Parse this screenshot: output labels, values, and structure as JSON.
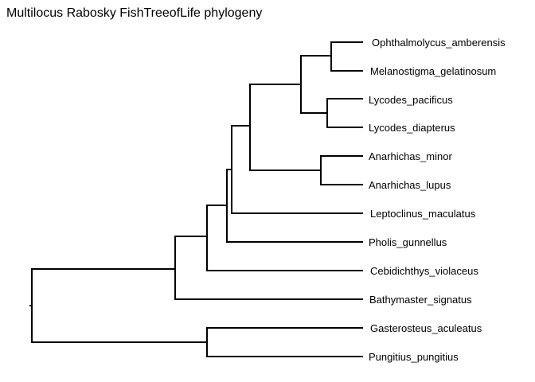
{
  "figure": {
    "title": "Multilocus Rabosky FishTreeofLife phylogeny",
    "branch_color": "#000000",
    "background": "#ffffff"
  },
  "tree": {
    "tips": [
      "Ophthalmolycus_amberensis",
      "Melanostigma_gelatinosum",
      "Lycodes_pacificus",
      "Lycodes_diapterus",
      "Anarhichas_minor",
      "Anarhichas_lupus",
      "Leptoclinus_maculatus",
      "Pholis_gunnellus",
      "Cebidichthys_violaceus",
      "Bathymaster_signatus",
      "Gasterosteus_aculeatus",
      "Pungitius_pungitius"
    ]
  }
}
